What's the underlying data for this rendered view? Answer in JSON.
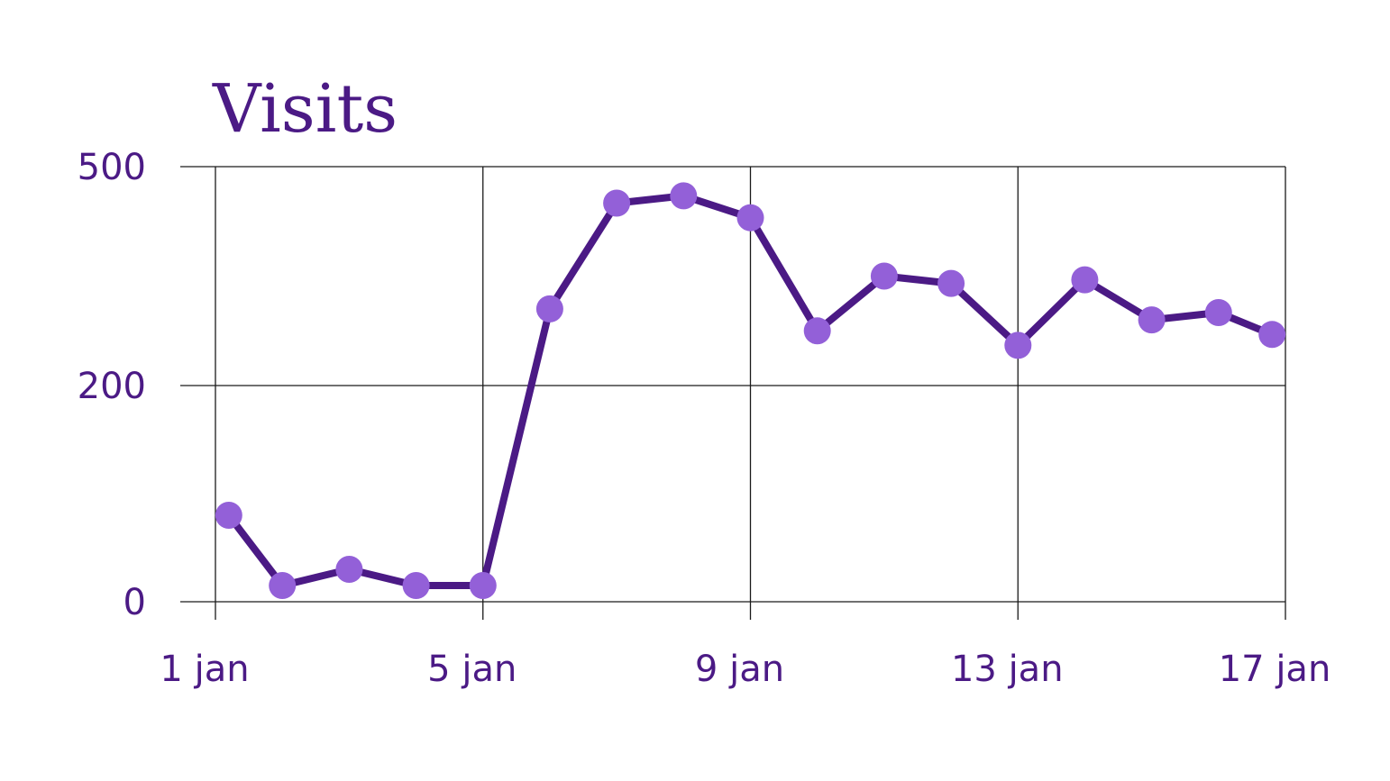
{
  "colors": {
    "line": "#4b1a85",
    "point": "#9360d8",
    "text": "#4b1a85",
    "grid": "#1a1a1a",
    "background": "#ffffff"
  },
  "chart_data": {
    "type": "line",
    "title": "Visits",
    "xlabel": "",
    "ylabel": "",
    "x_ticks": [
      "1 jan",
      "5 jan",
      "9 jan",
      "13 jan",
      "17 jan"
    ],
    "x_tick_values": [
      1,
      5,
      9,
      13,
      17
    ],
    "y_ticks": [
      "0",
      "200",
      "500"
    ],
    "y_tick_values": [
      0,
      200,
      500
    ],
    "xlim": [
      1,
      17
    ],
    "ylim": [
      0,
      500
    ],
    "grid": true,
    "legend": "none",
    "series": [
      {
        "x": [
          1.2,
          2,
          3,
          4,
          5,
          6,
          7,
          8,
          9,
          10,
          11,
          12,
          13,
          14,
          15,
          16,
          16.8
        ],
        "y": [
          80,
          15,
          30,
          15,
          15,
          305,
          450,
          460,
          430,
          275,
          350,
          340,
          255,
          345,
          290,
          300,
          270
        ]
      }
    ]
  }
}
